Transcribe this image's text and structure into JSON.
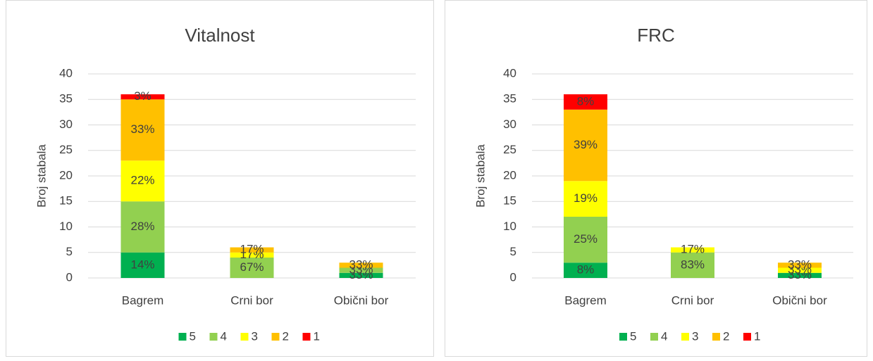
{
  "chart_data": [
    {
      "type": "stacked_bar",
      "title": "Vitalnost",
      "y_label": "Broj stabala",
      "categories": [
        "Bagrem",
        "Crni bor",
        "Obični bor"
      ],
      "ylim": [
        0,
        40
      ],
      "yticks": [
        0,
        5,
        10,
        15,
        20,
        25,
        30,
        35,
        40
      ],
      "grid": true,
      "legend": "bottom",
      "series": [
        {
          "name": "5",
          "color": "#00b050",
          "values": [
            5,
            0,
            1
          ],
          "value_labels": [
            "14%",
            null,
            "33%"
          ]
        },
        {
          "name": "4",
          "color": "#92d050",
          "values": [
            10,
            4,
            1
          ],
          "value_labels": [
            "28%",
            "67%",
            "33%"
          ]
        },
        {
          "name": "3",
          "color": "#ffff00",
          "values": [
            8,
            1,
            0
          ],
          "value_labels": [
            "22%",
            "17%",
            null
          ]
        },
        {
          "name": "2",
          "color": "#ffc000",
          "values": [
            12,
            1,
            1
          ],
          "value_labels": [
            "33%",
            "17%",
            "33%"
          ]
        },
        {
          "name": "1",
          "color": "#ff0000",
          "values": [
            1,
            0,
            0
          ],
          "value_labels": [
            "3%",
            null,
            null
          ]
        }
      ]
    },
    {
      "type": "stacked_bar",
      "title": "FRC",
      "y_label": "Broj stabala",
      "categories": [
        "Bagrem",
        "Crni bor",
        "Obični bor"
      ],
      "ylim": [
        0,
        40
      ],
      "yticks": [
        0,
        5,
        10,
        15,
        20,
        25,
        30,
        35,
        40
      ],
      "grid": true,
      "legend": "bottom",
      "series": [
        {
          "name": "5",
          "color": "#00b050",
          "values": [
            3,
            0,
            1
          ],
          "value_labels": [
            "8%",
            null,
            "33%"
          ]
        },
        {
          "name": "4",
          "color": "#92d050",
          "values": [
            9,
            5,
            0
          ],
          "value_labels": [
            "25%",
            "83%",
            null
          ]
        },
        {
          "name": "3",
          "color": "#ffff00",
          "values": [
            7,
            1,
            1
          ],
          "value_labels": [
            "19%",
            "17%",
            "33%"
          ]
        },
        {
          "name": "2",
          "color": "#ffc000",
          "values": [
            14,
            0,
            1
          ],
          "value_labels": [
            "39%",
            null,
            "33%"
          ]
        },
        {
          "name": "1",
          "color": "#ff0000",
          "values": [
            3,
            0,
            0
          ],
          "value_labels": [
            "8%",
            null,
            null
          ]
        }
      ]
    }
  ]
}
